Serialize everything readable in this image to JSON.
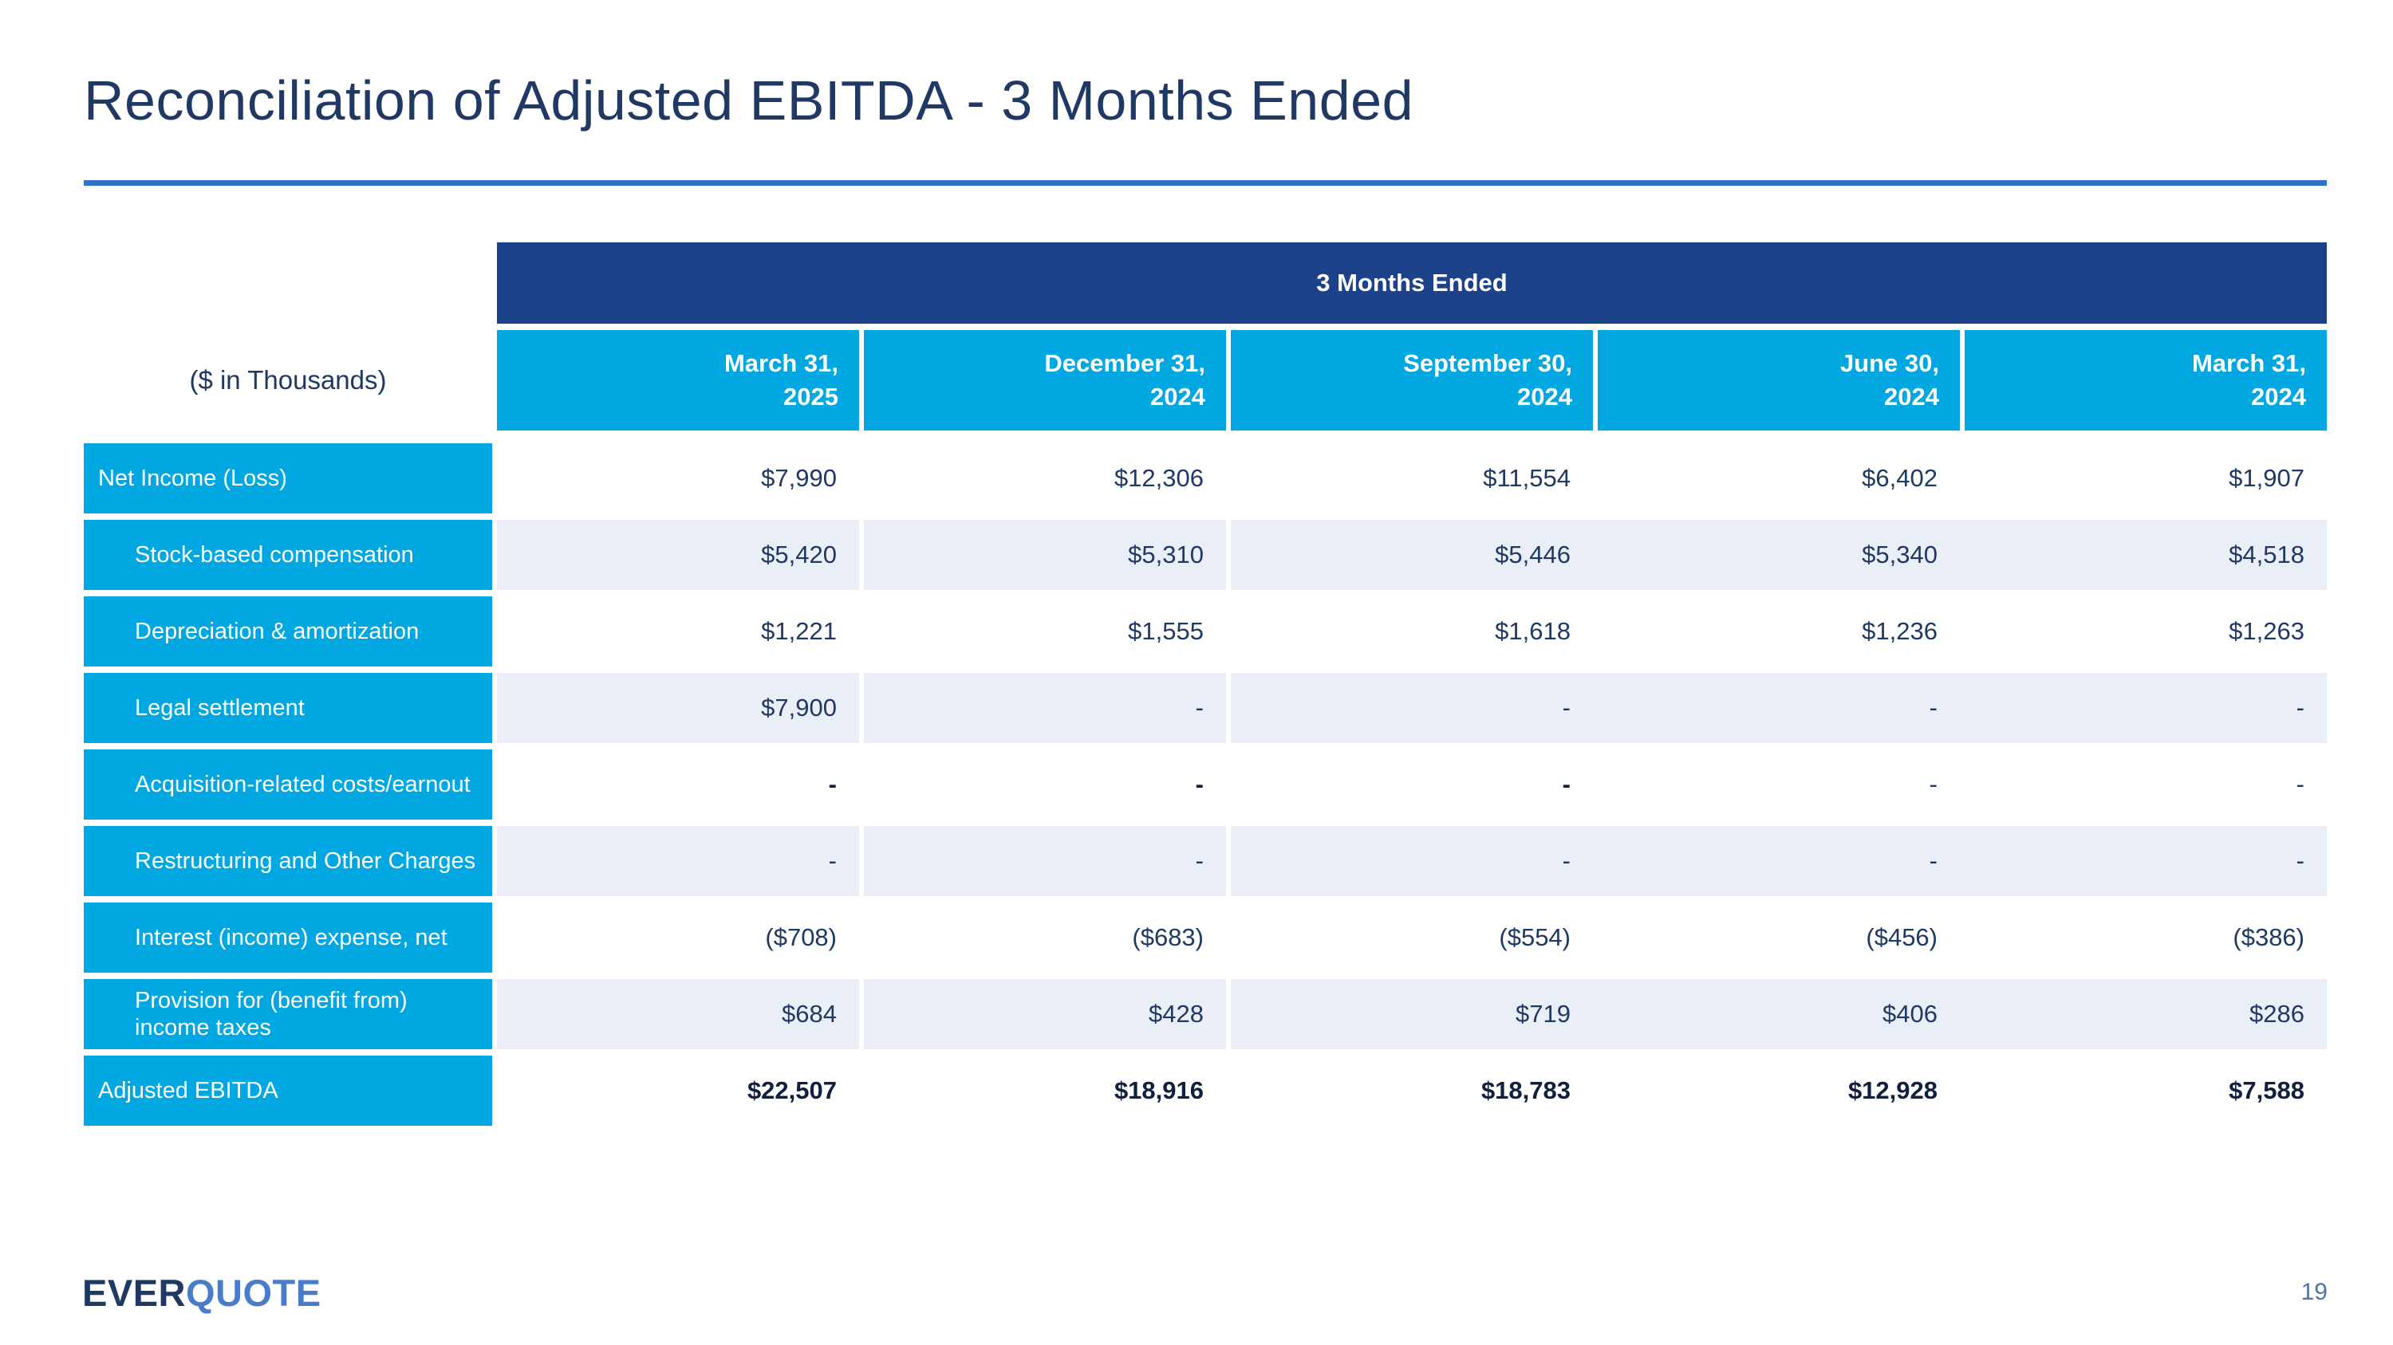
{
  "title": "Reconciliation of Adjusted EBITDA - 3 Months Ended",
  "footer": {
    "logo_ever": "EVER",
    "logo_quote": "QUOTE",
    "page_number": "19"
  },
  "table": {
    "units_label": "($ in Thousands)",
    "group_header": "3 Months Ended",
    "columns": [
      "March 31,\n2025",
      "December 31,\n2024",
      "September 30,\n2024",
      "June 30,\n2024",
      "March 31,\n2024"
    ],
    "rows": [
      {
        "label": "Net Income (Loss)",
        "indent": false,
        "shaded": false,
        "values": [
          "$7,990",
          "$12,306",
          "$11,554",
          "$6,402",
          "$1,907"
        ]
      },
      {
        "label": "Stock-based compensation",
        "indent": true,
        "shaded": true,
        "values": [
          "$5,420",
          "$5,310",
          "$5,446",
          "$5,340",
          "$4,518"
        ]
      },
      {
        "label": "Depreciation & amortization",
        "indent": true,
        "shaded": false,
        "values": [
          "$1,221",
          "$1,555",
          "$1,618",
          "$1,236",
          "$1,263"
        ]
      },
      {
        "label": "Legal settlement",
        "indent": true,
        "shaded": true,
        "values": [
          "$7,900",
          "-",
          "-",
          "-",
          "-"
        ]
      },
      {
        "label": "Acquisition-related costs/earnout",
        "indent": true,
        "shaded": false,
        "values": [
          "-",
          "-",
          "-",
          "-",
          "-"
        ],
        "bold_cells": [
          true,
          true,
          true,
          false,
          false
        ]
      },
      {
        "label": "Restructuring and Other Charges",
        "indent": true,
        "shaded": true,
        "values": [
          "-",
          "-",
          "-",
          "-",
          "-"
        ]
      },
      {
        "label": "Interest (income) expense, net",
        "indent": true,
        "shaded": false,
        "values": [
          "($708)",
          "($683)",
          "($554)",
          "($456)",
          "($386)"
        ]
      },
      {
        "label": "Provision for (benefit from) income taxes",
        "indent": true,
        "shaded": true,
        "values": [
          "$684",
          "$428",
          "$719",
          "$406",
          "$286"
        ]
      },
      {
        "label": "Adjusted EBITDA",
        "indent": false,
        "shaded": false,
        "values": [
          "$22,507",
          "$18,916",
          "$18,783",
          "$12,928",
          "$7,588"
        ],
        "row_bold": true
      }
    ]
  },
  "colors": {
    "accent_cyan": "#00a7e1",
    "header_navy": "#1e4289",
    "text_navy": "#1f3864",
    "rule_blue": "#2e73c5",
    "shaded_row": "#eaeef6",
    "logo_blue": "#4a7dc9"
  }
}
